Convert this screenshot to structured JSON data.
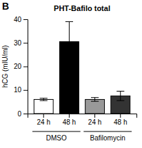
{
  "chart_data": {
    "type": "bar",
    "title": "PHT-Bafilo total",
    "panel_label": "B",
    "y_label": "hCG (mIU/ml)",
    "categories": [
      "24 h",
      "48 h",
      "24 h",
      "48 h"
    ],
    "groups": [
      "DMSO",
      "DMSO",
      "Bafilomycin",
      "Bafilomycin"
    ],
    "values": [
      6.0,
      30.5,
      6.0,
      7.5
    ],
    "errors": [
      0.5,
      8.5,
      0.8,
      2.0
    ],
    "colors": [
      "white",
      "black",
      "#999999",
      "#333333"
    ],
    "ylim": [
      0,
      40
    ],
    "yticks": [
      0,
      10,
      20,
      30,
      40
    ],
    "grid": false
  }
}
